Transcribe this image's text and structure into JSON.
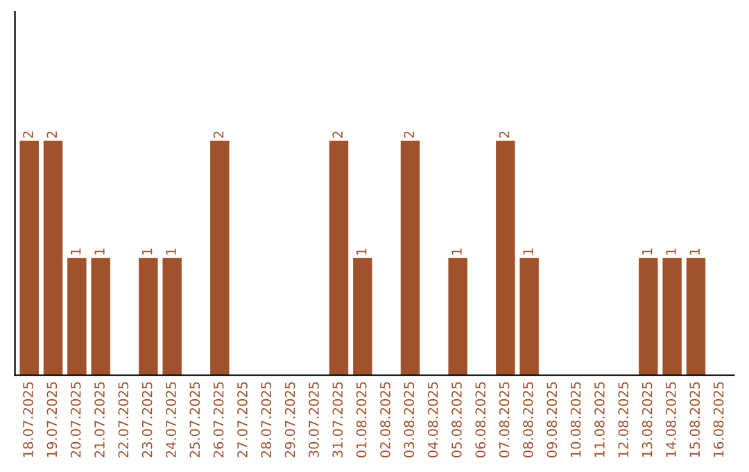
{
  "chart_data": {
    "type": "bar",
    "categories": [
      "18.07.2025",
      "19.07.2025",
      "20.07.2025",
      "21.07.2025",
      "22.07.2025",
      "23.07.2025",
      "24.07.2025",
      "25.07.2025",
      "26.07.2025",
      "27.07.2025",
      "28.07.2025",
      "29.07.2025",
      "30.07.2025",
      "31.07.2025",
      "01.08.2025",
      "02.08.2025",
      "03.08.2025",
      "04.08.2025",
      "05.08.2025",
      "06.08.2025",
      "07.08.2025",
      "08.08.2025",
      "09.08.2025",
      "10.08.2025",
      "11.08.2025",
      "12.08.2025",
      "13.08.2025",
      "14.08.2025",
      "15.08.2025",
      "16.08.2025"
    ],
    "values": [
      2,
      2,
      1,
      1,
      0,
      1,
      1,
      0,
      2,
      0,
      0,
      0,
      0,
      2,
      1,
      0,
      2,
      0,
      1,
      0,
      2,
      1,
      0,
      0,
      0,
      0,
      1,
      1,
      1,
      0
    ],
    "value_labels": [
      "2",
      "2",
      "1",
      "1",
      null,
      "1",
      "1",
      null,
      "2",
      null,
      null,
      null,
      null,
      "2",
      "1",
      null,
      "2",
      null,
      "1",
      null,
      "2",
      "1",
      null,
      null,
      null,
      null,
      "1",
      "1",
      "1",
      null
    ],
    "color": "#a0522d",
    "grid": false,
    "legend": false
  }
}
